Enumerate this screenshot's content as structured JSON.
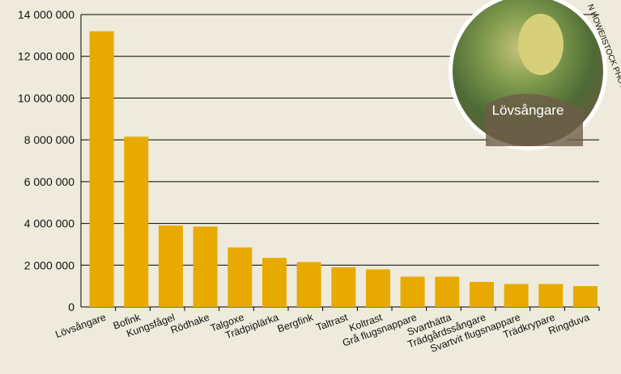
{
  "chart_data": {
    "type": "bar",
    "categories": [
      "Lövsångare",
      "Bofink",
      "Kungsfågel",
      "Rödhake",
      "Talgoxe",
      "Trädpiplärka",
      "Bergfink",
      "Taltrast",
      "Koltrast",
      "Grå flugsnappare",
      "Svarthätta",
      "Trädgårdssångare",
      "Svartvit flugsnappare",
      "Trädkrypare",
      "Ringduva"
    ],
    "values": [
      13200000,
      8150000,
      3900000,
      3850000,
      2850000,
      2350000,
      2150000,
      1900000,
      1800000,
      1450000,
      1450000,
      1200000,
      1100000,
      1100000,
      1000000
    ],
    "color": "#e8aa00",
    "ylim": [
      0,
      14000000
    ],
    "yticks": [
      0,
      {
        "value": 2000000,
        "label": "2 000 000"
      },
      {
        "value": 4000000,
        "label": "4 000 000"
      },
      {
        "value": 6000000,
        "label": "6 000 000"
      },
      {
        "value": 8000000,
        "label": "8 000 000"
      },
      {
        "value": 10000000,
        "label": "10 000 000"
      },
      {
        "value": 12000000,
        "label": "12 000 000"
      },
      {
        "value": 14000000,
        "label": "14 000 000"
      }
    ],
    "grid": true,
    "photo_caption": "Lövsångare",
    "photo_credit": "N HOWE/ISTOCK PHOTO"
  }
}
